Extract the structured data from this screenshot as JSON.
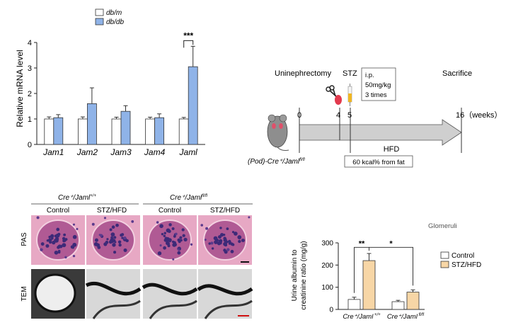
{
  "colors": {
    "dbm": "#ffffff",
    "dbdb": "#8fb3e8",
    "control": "#ffffff",
    "stzhfd": "#f7d6a6",
    "pas_pink": "#c8608a",
    "pas_purple": "#5b3a8c"
  },
  "chart_data": [
    {
      "type": "bar",
      "title": "",
      "ylabel": "Relative mRNA level",
      "xlabel": "",
      "ylim": [
        0,
        4
      ],
      "yticks": [
        "0",
        "1",
        "2",
        "3",
        "4"
      ],
      "categories": [
        "Jam1",
        "Jam2",
        "Jam3",
        "Jam4",
        "Jaml"
      ],
      "series": [
        {
          "name": "db/m",
          "values": [
            1.0,
            1.0,
            1.0,
            1.0,
            1.0
          ],
          "errors": [
            0.08,
            0.08,
            0.07,
            0.07,
            0.06
          ]
        },
        {
          "name": "db/db",
          "values": [
            1.05,
            1.6,
            1.3,
            1.05,
            3.05
          ],
          "errors": [
            0.12,
            0.62,
            0.22,
            0.15,
            0.8
          ]
        }
      ],
      "annotations": [
        {
          "text": "***",
          "category": "Jaml"
        }
      ]
    },
    {
      "type": "bar",
      "title": "Glomeruli",
      "ylabel": "Urine albumin to creatinine ratio (mg/g)",
      "xlabel": "",
      "ylim": [
        0,
        300
      ],
      "yticks": [
        "0",
        "100",
        "200",
        "300"
      ],
      "categories": [
        "Cre+/Jaml +/+",
        "Cre+/Jaml fl/fl"
      ],
      "category_labels": [
        {
          "main": "Cre⁺/Jaml",
          "sup": "+/+"
        },
        {
          "main": "Cre⁺/Jaml",
          "sup": "fl/fl"
        }
      ],
      "series": [
        {
          "name": "Control",
          "values": [
            45,
            35
          ],
          "errors": [
            10,
            6
          ]
        },
        {
          "name": "STZ/HFD",
          "values": [
            220,
            78
          ],
          "errors": [
            32,
            10
          ]
        }
      ],
      "annotations": [
        {
          "text": "**",
          "between": "within-group-1"
        },
        {
          "text": "*",
          "between": "STZ/HFD groups"
        }
      ]
    }
  ],
  "timeline": {
    "event_uninephrectomy": "Uninephrectomy",
    "event_stz": "STZ",
    "ip_box": [
      "i.p.",
      "50mg/kg",
      "3 times"
    ],
    "event_sacrifice": "Sacrifice",
    "tick_0": "0",
    "tick_4": "4",
    "tick_5": "5",
    "tick_16": "16（weeks）",
    "hfd_label": "HFD",
    "hfd_detail": "60 kcal% from fat",
    "mouse_label_main": "(Pod)-Cre⁺/Jaml",
    "mouse_label_sup": "fl/fl"
  },
  "histology": {
    "group1_main": "Cre⁺/Jaml",
    "group1_sup": "+/+",
    "group2_main": "Cre⁺/Jaml",
    "group2_sup": "fl/fl",
    "col_labels": [
      "Control",
      "STZ/HFD",
      "Control",
      "STZ/HFD"
    ],
    "row_labels": [
      "PAS",
      "TEM"
    ]
  }
}
